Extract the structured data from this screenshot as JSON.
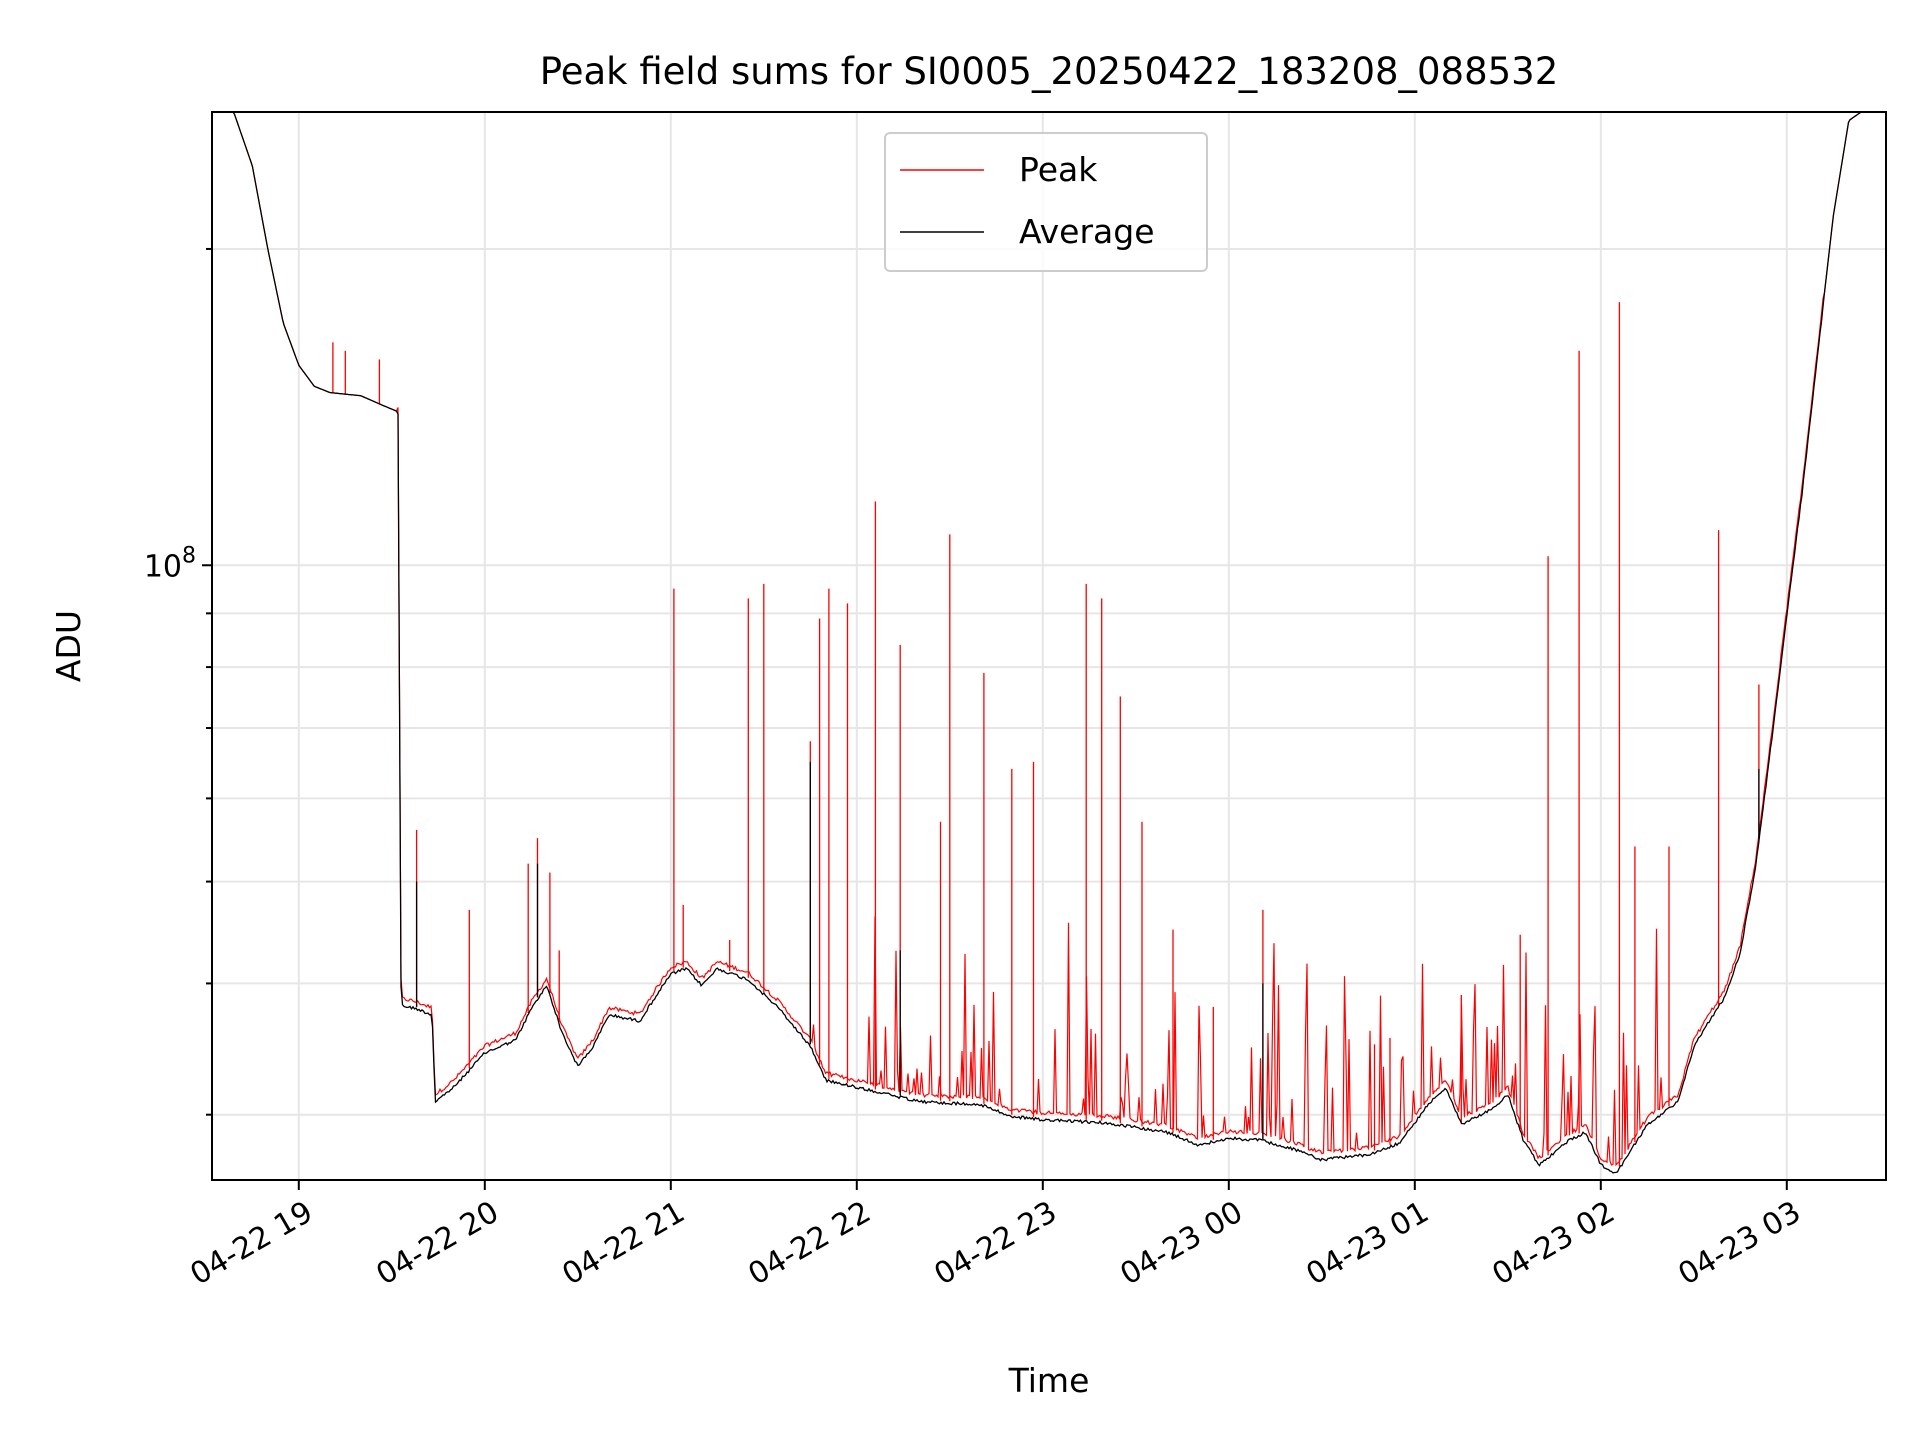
{
  "chart_data": {
    "type": "line",
    "title": "Peak field sums for SI0005_20250422_183208_088532",
    "xlabel": "Time",
    "ylabel": "ADU",
    "y_scale": "log",
    "y_tick_label": "10",
    "y_tick_exponent": "8",
    "ylim": [
      26000000,
      270000000
    ],
    "xlim": [
      "2025-04-22 18:32",
      "2025-04-23 03:32"
    ],
    "x_ticks": [
      {
        "label": "04-22 19",
        "t": "2025-04-22 19:00"
      },
      {
        "label": "04-22 20",
        "t": "2025-04-22 20:00"
      },
      {
        "label": "04-22 21",
        "t": "2025-04-22 21:00"
      },
      {
        "label": "04-22 22",
        "t": "2025-04-22 22:00"
      },
      {
        "label": "04-22 23",
        "t": "2025-04-22 23:00"
      },
      {
        "label": "04-23 00",
        "t": "2025-04-23 00:00"
      },
      {
        "label": "04-23 01",
        "t": "2025-04-23 01:00"
      },
      {
        "label": "04-23 02",
        "t": "2025-04-23 02:00"
      },
      {
        "label": "04-23 03",
        "t": "2025-04-23 03:00"
      }
    ],
    "grid": true,
    "legend_position": "top-center",
    "series": [
      {
        "name": "Average",
        "color": "#000000",
        "points": [
          [
            "2025-04-22 18:32",
            270000000
          ],
          [
            "2025-04-22 18:39",
            270000000
          ],
          [
            "2025-04-22 18:45",
            240000000
          ],
          [
            "2025-04-22 18:50",
            200000000
          ],
          [
            "2025-04-22 18:55",
            170000000
          ],
          [
            "2025-04-22 19:00",
            155000000
          ],
          [
            "2025-04-22 19:05",
            148000000
          ],
          [
            "2025-04-22 19:10",
            146000000
          ],
          [
            "2025-04-22 19:20",
            145000000
          ],
          [
            "2025-04-22 19:27",
            142000000
          ],
          [
            "2025-04-22 19:32",
            140000000
          ],
          [
            "2025-04-22 19:33",
            38300000
          ],
          [
            "2025-04-22 19:38",
            38000000
          ],
          [
            "2025-04-22 19:43",
            37500000
          ],
          [
            "2025-04-22 19:44",
            31000000
          ],
          [
            "2025-04-22 19:50",
            32000000
          ],
          [
            "2025-04-22 20:00",
            34500000
          ],
          [
            "2025-04-22 20:10",
            35500000
          ],
          [
            "2025-04-22 20:15",
            38000000
          ],
          [
            "2025-04-22 20:20",
            40000000
          ],
          [
            "2025-04-22 20:25",
            36000000
          ],
          [
            "2025-04-22 20:30",
            33500000
          ],
          [
            "2025-04-22 20:35",
            35000000
          ],
          [
            "2025-04-22 20:40",
            37500000
          ],
          [
            "2025-04-22 20:50",
            37000000
          ],
          [
            "2025-04-22 20:55",
            39000000
          ],
          [
            "2025-04-22 21:00",
            41000000
          ],
          [
            "2025-04-22 21:05",
            41500000
          ],
          [
            "2025-04-22 21:10",
            40000000
          ],
          [
            "2025-04-22 21:15",
            41500000
          ],
          [
            "2025-04-22 21:25",
            40500000
          ],
          [
            "2025-04-22 21:35",
            38000000
          ],
          [
            "2025-04-22 21:45",
            35000000
          ],
          [
            "2025-04-22 21:50",
            32500000
          ],
          [
            "2025-04-22 22:00",
            32000000
          ],
          [
            "2025-04-22 22:10",
            31500000
          ],
          [
            "2025-04-22 22:20",
            31000000
          ],
          [
            "2025-04-22 22:40",
            30800000
          ],
          [
            "2025-04-22 22:50",
            30000000
          ],
          [
            "2025-04-22 23:00",
            29800000
          ],
          [
            "2025-04-22 23:20",
            29600000
          ],
          [
            "2025-04-22 23:40",
            29000000
          ],
          [
            "2025-04-22 23:50",
            28200000
          ],
          [
            "2025-04-23 00:00",
            28600000
          ],
          [
            "2025-04-23 00:10",
            28500000
          ],
          [
            "2025-04-23 00:20",
            28000000
          ],
          [
            "2025-04-23 00:30",
            27300000
          ],
          [
            "2025-04-23 00:45",
            27600000
          ],
          [
            "2025-04-23 00:55",
            28300000
          ],
          [
            "2025-04-23 01:05",
            31000000
          ],
          [
            "2025-04-23 01:10",
            32000000
          ],
          [
            "2025-04-23 01:15",
            29500000
          ],
          [
            "2025-04-23 01:25",
            30500000
          ],
          [
            "2025-04-23 01:30",
            31500000
          ],
          [
            "2025-04-23 01:35",
            28500000
          ],
          [
            "2025-04-23 01:40",
            27000000
          ],
          [
            "2025-04-23 01:50",
            28500000
          ],
          [
            "2025-04-23 01:55",
            29000000
          ],
          [
            "2025-04-23 02:00",
            27000000
          ],
          [
            "2025-04-23 02:05",
            26500000
          ],
          [
            "2025-04-23 02:15",
            29500000
          ],
          [
            "2025-04-23 02:25",
            31000000
          ],
          [
            "2025-04-23 02:30",
            35000000
          ],
          [
            "2025-04-23 02:35",
            37000000
          ],
          [
            "2025-04-23 02:40",
            39000000
          ],
          [
            "2025-04-23 02:45",
            43000000
          ],
          [
            "2025-04-23 02:50",
            52000000
          ],
          [
            "2025-04-23 02:55",
            68000000
          ],
          [
            "2025-04-23 03:00",
            90000000
          ],
          [
            "2025-04-23 03:05",
            118000000
          ],
          [
            "2025-04-23 03:10",
            160000000
          ],
          [
            "2025-04-23 03:15",
            215000000
          ],
          [
            "2025-04-23 03:20",
            265000000
          ],
          [
            "2025-04-23 03:24",
            270000000
          ],
          [
            "2025-04-23 03:32",
            270000000
          ]
        ]
      },
      {
        "name": "Peak",
        "color": "#ff0000",
        "spikes": [
          [
            "2025-04-22 19:11",
            163000000
          ],
          [
            "2025-04-22 19:15",
            160000000
          ],
          [
            "2025-04-22 19:26",
            157000000
          ],
          [
            "2025-04-22 19:38",
            56000000
          ],
          [
            "2025-04-22 19:55",
            47000000
          ],
          [
            "2025-04-22 20:14",
            52000000
          ],
          [
            "2025-04-22 20:17",
            55000000
          ],
          [
            "2025-04-22 20:21",
            51000000
          ],
          [
            "2025-04-22 20:24",
            43000000
          ],
          [
            "2025-04-22 21:01",
            95000000
          ],
          [
            "2025-04-22 21:04",
            47500000
          ],
          [
            "2025-04-22 21:19",
            44000000
          ],
          [
            "2025-04-22 21:25",
            93000000
          ],
          [
            "2025-04-22 21:30",
            96000000
          ],
          [
            "2025-04-22 21:45",
            68000000
          ],
          [
            "2025-04-22 21:48",
            89000000
          ],
          [
            "2025-04-22 21:51",
            95000000
          ],
          [
            "2025-04-22 21:57",
            92000000
          ],
          [
            "2025-04-22 22:06",
            115000000
          ],
          [
            "2025-04-22 22:14",
            84000000
          ],
          [
            "2025-04-22 22:27",
            57000000
          ],
          [
            "2025-04-22 22:30",
            107000000
          ],
          [
            "2025-04-22 22:41",
            79000000
          ],
          [
            "2025-04-22 22:50",
            64000000
          ],
          [
            "2025-04-22 22:57",
            65000000
          ],
          [
            "2025-04-22 23:14",
            96000000
          ],
          [
            "2025-04-22 23:19",
            93000000
          ],
          [
            "2025-04-22 23:25",
            75000000
          ],
          [
            "2025-04-22 23:32",
            57000000
          ],
          [
            "2025-04-22 23:42",
            45000000
          ],
          [
            "2025-04-22 23:55",
            38000000
          ],
          [
            "2025-04-23 00:11",
            47000000
          ],
          [
            "2025-04-23 00:47",
            35000000
          ],
          [
            "2025-04-23 00:52",
            35500000
          ],
          [
            "2025-04-23 01:15",
            39000000
          ],
          [
            "2025-04-23 01:34",
            44500000
          ],
          [
            "2025-04-23 01:43",
            102000000
          ],
          [
            "2025-04-23 01:53",
            160000000
          ],
          [
            "2025-04-23 02:06",
            178000000
          ],
          [
            "2025-04-23 02:11",
            54000000
          ],
          [
            "2025-04-23 02:22",
            54000000
          ],
          [
            "2025-04-23 02:38",
            108000000
          ],
          [
            "2025-04-23 02:51",
            77000000
          ]
        ]
      }
    ]
  }
}
